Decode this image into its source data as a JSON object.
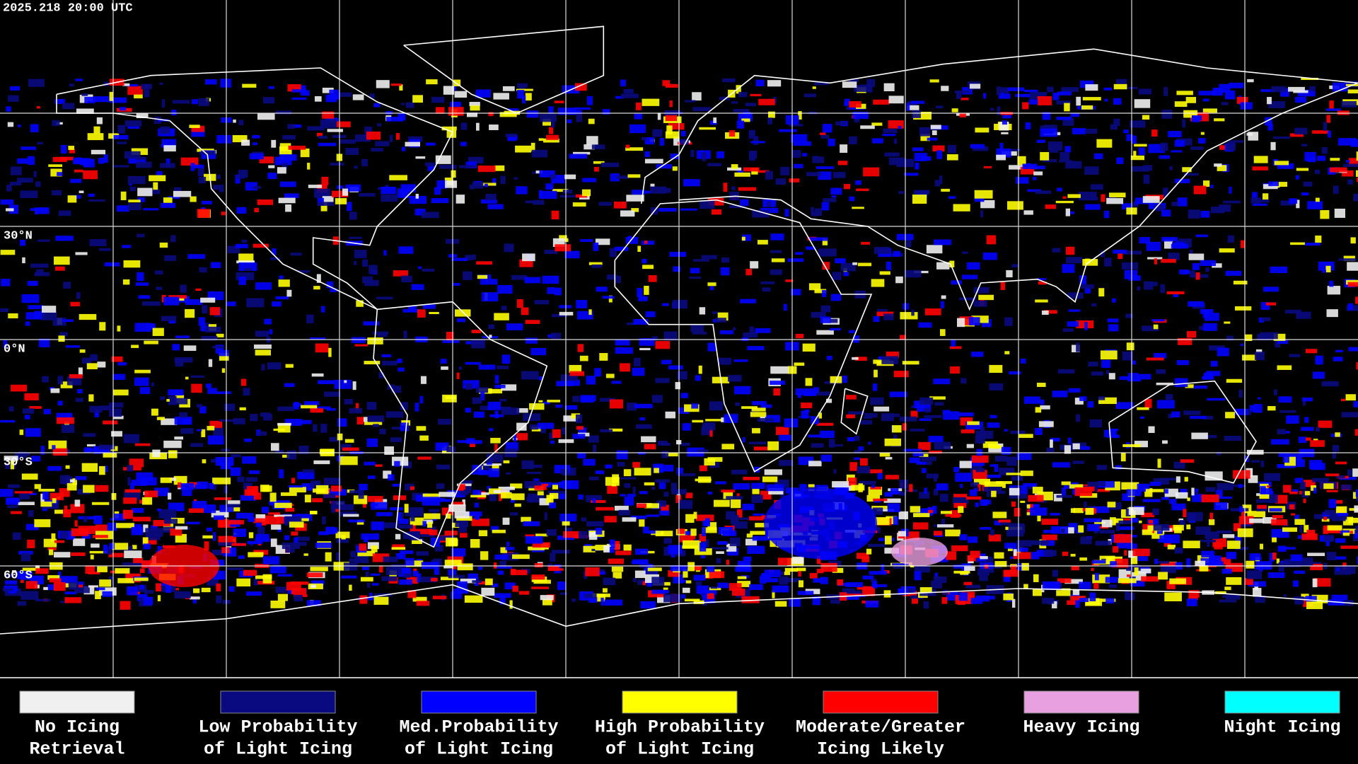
{
  "header": {
    "timestamp": "2025.218 20:00 UTC"
  },
  "map": {
    "latitude_labels": [
      "30°N",
      "0°N",
      "30°S",
      "60°S"
    ]
  },
  "legend": [
    {
      "lines": [
        "No Icing",
        "Retrieval"
      ],
      "color": "#f0f0f0"
    },
    {
      "lines": [
        "Low Probability",
        "of Light Icing"
      ],
      "color": "#0a0a80"
    },
    {
      "lines": [
        "Med.Probability",
        "of Light Icing"
      ],
      "color": "#0000ff"
    },
    {
      "lines": [
        "High Probability",
        "of Light Icing"
      ],
      "color": "#ffff00"
    },
    {
      "lines": [
        "Moderate/Greater",
        "Icing Likely"
      ],
      "color": "#ff0000"
    },
    {
      "lines": [
        "Heavy Icing"
      ],
      "color": "#e8a0e0"
    },
    {
      "lines": [
        "Night Icing"
      ],
      "color": "#00ffff"
    }
  ]
}
